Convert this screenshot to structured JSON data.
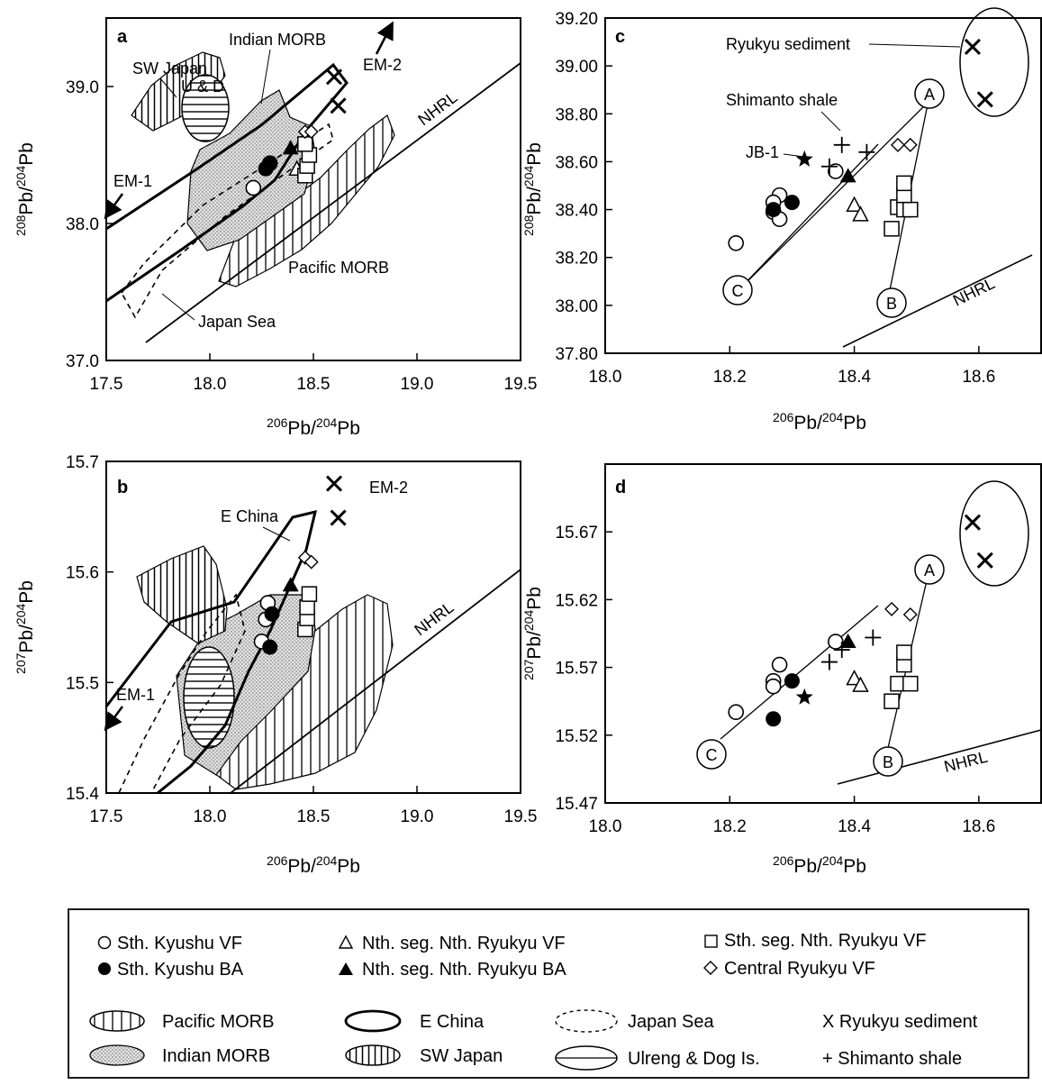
{
  "chart_data": [
    {
      "panel": "a",
      "type": "scatter",
      "xlabel": "206Pb/204Pb",
      "ylabel": "208Pb/204Pb",
      "xlim": [
        17.5,
        19.5
      ],
      "ylim": [
        37.0,
        39.5
      ],
      "xticks": [
        "17.5",
        "18.0",
        "18.5",
        "19.0",
        "19.5"
      ],
      "yticks": [
        "37.0",
        "38.0",
        "39.0"
      ],
      "annotations": [
        "SW Japan",
        "U & D",
        "Indian MORB",
        "EM-2",
        "EM-1",
        "NHRL",
        "Pacific MORB",
        "Japan Sea"
      ],
      "series": [
        {
          "symbol": "open-circle",
          "points": [
            [
              18.21,
              38.26
            ],
            [
              18.29,
              38.44
            ]
          ]
        },
        {
          "symbol": "filled-circle",
          "points": [
            [
              18.27,
              38.4
            ],
            [
              18.29,
              38.44
            ]
          ]
        },
        {
          "symbol": "filled-triangle",
          "points": [
            [
              18.39,
              38.55
            ]
          ]
        },
        {
          "symbol": "open-triangle",
          "points": [
            [
              18.42,
              38.4
            ]
          ]
        },
        {
          "symbol": "open-square",
          "points": [
            [
              18.46,
              38.35
            ],
            [
              18.47,
              38.42
            ],
            [
              18.48,
              38.5
            ],
            [
              18.46,
              38.58
            ]
          ]
        },
        {
          "symbol": "open-diamond",
          "points": [
            [
              18.46,
              38.67
            ],
            [
              18.49,
              38.67
            ]
          ]
        },
        {
          "symbol": "x",
          "points": [
            [
              18.6,
              39.07
            ],
            [
              18.62,
              38.86
            ]
          ]
        }
      ]
    },
    {
      "panel": "b",
      "type": "scatter",
      "xlabel": "206Pb/204Pb",
      "ylabel": "207Pb/204Pb",
      "xlim": [
        17.5,
        19.5
      ],
      "ylim": [
        15.4,
        15.7
      ],
      "xticks": [
        "17.5",
        "18.0",
        "18.5",
        "19.0",
        "19.5"
      ],
      "yticks": [
        "15.4",
        "15.5",
        "15.6",
        "15.7"
      ],
      "annotations": [
        "E China",
        "EM-2",
        "EM-1",
        "NHRL"
      ],
      "series": [
        {
          "symbol": "open-circle",
          "points": [
            [
              18.28,
              15.572
            ],
            [
              18.27,
              15.557
            ],
            [
              18.25,
              15.537
            ]
          ]
        },
        {
          "symbol": "filled-circle",
          "points": [
            [
              18.3,
              15.562
            ],
            [
              18.29,
              15.532
            ]
          ]
        },
        {
          "symbol": "filled-triangle",
          "points": [
            [
              18.39,
              15.588
            ]
          ]
        },
        {
          "symbol": "open-square",
          "points": [
            [
              18.46,
              15.548
            ],
            [
              18.47,
              15.558
            ],
            [
              18.47,
              15.568
            ],
            [
              18.48,
              15.58
            ]
          ]
        },
        {
          "symbol": "open-diamond",
          "points": [
            [
              18.46,
              15.613
            ],
            [
              18.49,
              15.609
            ]
          ]
        },
        {
          "symbol": "x",
          "points": [
            [
              18.6,
              15.68
            ],
            [
              18.62,
              15.649
            ]
          ]
        }
      ]
    },
    {
      "panel": "c",
      "type": "scatter",
      "xlabel": "206Pb/204Pb",
      "ylabel": "208Pb/204Pb",
      "xlim": [
        18.0,
        18.7
      ],
      "ylim": [
        37.8,
        39.2
      ],
      "xticks": [
        "18.0",
        "18.2",
        "18.4",
        "18.6"
      ],
      "yticks": [
        "37.80",
        "38.00",
        "38.20",
        "38.40",
        "38.60",
        "38.80",
        "39.00",
        "39.20"
      ],
      "annotations": [
        "Ryukyu sediment",
        "Shimanto shale",
        "JB-1",
        "NHRL"
      ],
      "end_members": [
        "A",
        "B",
        "C"
      ],
      "series": [
        {
          "symbol": "open-circle",
          "points": [
            [
              18.21,
              38.26
            ],
            [
              18.28,
              38.46
            ],
            [
              18.27,
              38.43
            ],
            [
              18.27,
              38.39
            ],
            [
              18.28,
              38.36
            ],
            [
              18.37,
              38.56
            ]
          ]
        },
        {
          "symbol": "filled-circle",
          "points": [
            [
              18.27,
              38.4
            ],
            [
              18.3,
              38.43
            ]
          ]
        },
        {
          "symbol": "open-triangle",
          "points": [
            [
              18.4,
              38.42
            ],
            [
              18.41,
              38.38
            ]
          ]
        },
        {
          "symbol": "filled-triangle",
          "points": [
            [
              18.39,
              38.54
            ]
          ]
        },
        {
          "symbol": "open-square",
          "points": [
            [
              18.46,
              38.32
            ],
            [
              18.47,
              38.41
            ],
            [
              18.48,
              38.4
            ],
            [
              18.49,
              38.4
            ],
            [
              18.48,
              38.46
            ],
            [
              18.48,
              38.51
            ]
          ]
        },
        {
          "symbol": "open-diamond",
          "points": [
            [
              18.47,
              38.67
            ],
            [
              18.49,
              38.67
            ]
          ]
        },
        {
          "symbol": "x",
          "points": [
            [
              18.59,
              39.08
            ],
            [
              18.61,
              38.86
            ]
          ]
        },
        {
          "symbol": "plus",
          "points": [
            [
              18.38,
              38.67
            ],
            [
              18.42,
              38.64
            ],
            [
              18.36,
              38.58
            ]
          ]
        },
        {
          "symbol": "star",
          "points": [
            [
              18.32,
              38.61
            ]
          ]
        }
      ]
    },
    {
      "panel": "d",
      "type": "scatter",
      "xlabel": "206Pb/204Pb",
      "ylabel": "207Pb/204Pb",
      "xlim": [
        18.0,
        18.7
      ],
      "ylim": [
        15.47,
        15.72
      ],
      "xticks": [
        "18.0",
        "18.2",
        "18.4",
        "18.6"
      ],
      "yticks": [
        "15.47",
        "15.52",
        "15.57",
        "15.62",
        "15.67"
      ],
      "annotations": [
        "NHRL"
      ],
      "end_members": [
        "A",
        "B",
        "C"
      ],
      "series": [
        {
          "symbol": "open-circle",
          "points": [
            [
              18.21,
              15.537
            ],
            [
              18.27,
              15.56
            ],
            [
              18.27,
              15.556
            ],
            [
              18.28,
              15.572
            ],
            [
              18.37,
              15.589
            ]
          ]
        },
        {
          "symbol": "filled-circle",
          "points": [
            [
              18.3,
              15.56
            ],
            [
              18.27,
              15.532
            ]
          ]
        },
        {
          "symbol": "open-triangle",
          "points": [
            [
              18.4,
              15.562
            ],
            [
              18.41,
              15.557
            ]
          ]
        },
        {
          "symbol": "filled-triangle",
          "points": [
            [
              18.39,
              15.589
            ]
          ]
        },
        {
          "symbol": "open-square",
          "points": [
            [
              18.46,
              15.545
            ],
            [
              18.47,
              15.558
            ],
            [
              18.48,
              15.572
            ],
            [
              18.48,
              15.581
            ],
            [
              18.49,
              15.558
            ]
          ]
        },
        {
          "symbol": "open-diamond",
          "points": [
            [
              18.46,
              15.613
            ],
            [
              18.49,
              15.609
            ]
          ]
        },
        {
          "symbol": "x",
          "points": [
            [
              18.59,
              15.677
            ],
            [
              18.61,
              15.649
            ]
          ]
        },
        {
          "symbol": "plus",
          "points": [
            [
              18.36,
              15.574
            ],
            [
              18.38,
              15.583
            ],
            [
              18.43,
              15.592
            ]
          ]
        },
        {
          "symbol": "star",
          "points": [
            [
              18.32,
              15.548
            ]
          ]
        }
      ]
    }
  ],
  "legend": {
    "row1": [
      "Sth. Kyushu VF",
      "Nth. seg. Nth. Ryukyu VF",
      "Sth. seg. Nth. Ryukyu VF"
    ],
    "row2": [
      "Sth. Kyushu BA",
      "Nth. seg. Nth. Ryukyu BA",
      "Central Ryukyu VF"
    ],
    "row3": [
      "Pacific MORB",
      "E China",
      "Japan Sea",
      "X Ryukyu sediment"
    ],
    "row4": [
      "Indian MORB",
      "SW Japan",
      "Ulreng & Dog Is.",
      "+ Shimanto shale"
    ]
  }
}
